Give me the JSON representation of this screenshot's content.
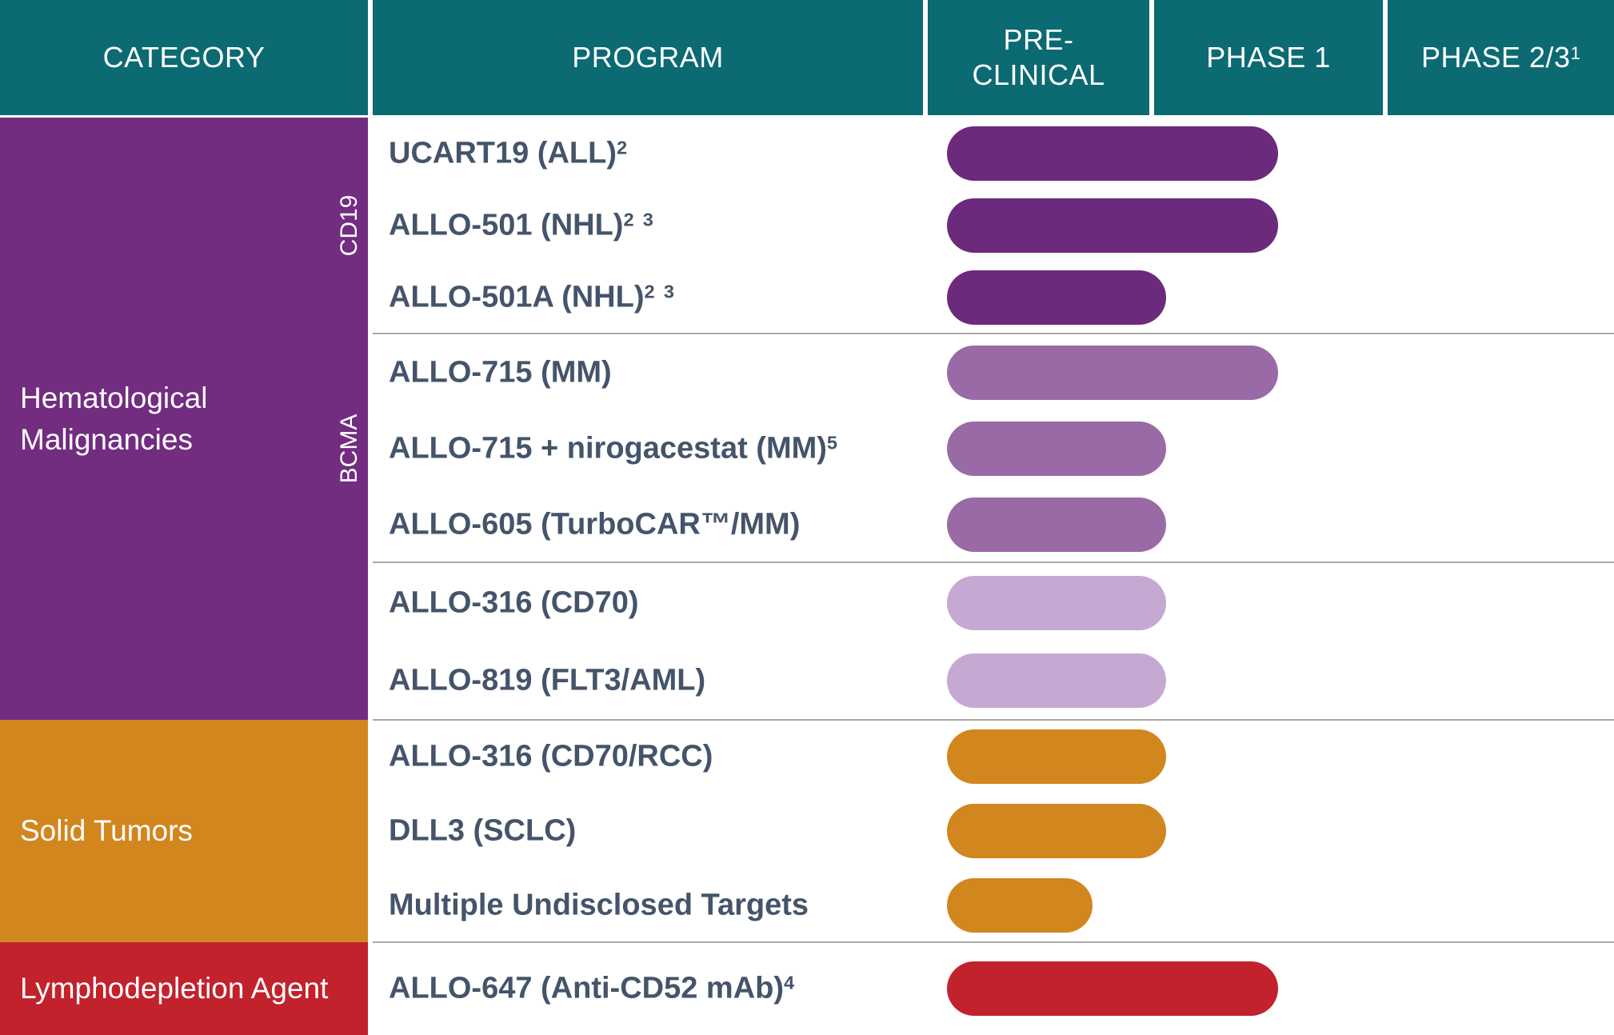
{
  "header": {
    "columns": [
      {
        "id": "category",
        "lines": [
          "CATEGORY"
        ]
      },
      {
        "id": "program",
        "lines": [
          "PROGRAM"
        ]
      },
      {
        "id": "preclinical",
        "lines": [
          "PRE-",
          "CLINICAL"
        ]
      },
      {
        "id": "phase1",
        "lines": [
          "PHASE 1"
        ]
      },
      {
        "id": "phase23",
        "lines": [
          "PHASE 2/3"
        ],
        "sup": "1"
      }
    ]
  },
  "categories": [
    {
      "id": "hematological-malignancies",
      "lines": [
        "Hematological",
        "Malignancies"
      ],
      "color": "#722C80"
    },
    {
      "id": "solid-tumors",
      "lines": [
        "Solid Tumors"
      ],
      "color": "#D2861E"
    },
    {
      "id": "lymphodepletion-agent",
      "lines": [
        "Lymphodepletion Agent"
      ],
      "color": "#C2222C"
    }
  ],
  "subcategories": [
    {
      "id": "cd19",
      "label": "CD19"
    },
    {
      "id": "bcma",
      "label": "BCMA"
    }
  ],
  "programs": [
    {
      "name": "UCART19 (ALL)",
      "sup": "2",
      "color": "#6C2A7C",
      "stage": "phase1_mid"
    },
    {
      "name": "ALLO-501 (NHL)",
      "sup": "2 3",
      "color": "#6C2A7C",
      "stage": "phase1_start"
    },
    {
      "name": "ALLO-501A (NHL)",
      "sup": "2 3",
      "color": "#6C2A7C",
      "stage": "phase1_entry"
    },
    {
      "name": "ALLO-715 (MM)",
      "sup": "",
      "color": "#9A6AA6",
      "stage": "phase1_mid"
    },
    {
      "name": "ALLO-715 + nirogacestat (MM)",
      "sup": "5",
      "color": "#9A6AA6",
      "stage": "phase1_entry"
    },
    {
      "name": "ALLO-605 (TurboCAR™/MM)",
      "sup": "",
      "color": "#9A6AA6",
      "stage": "phase1_entry"
    },
    {
      "name": "ALLO-316 (CD70)",
      "sup": "",
      "color": "#C5A9D3",
      "stage": "phase1_entry"
    },
    {
      "name": "ALLO-819 (FLT3/AML)",
      "sup": "",
      "color": "#C5A9D3",
      "stage": "phase1_entry"
    },
    {
      "name": "ALLO-316 (CD70/RCC)",
      "sup": "",
      "color": "#D2861E",
      "stage": "phase1_entry"
    },
    {
      "name": "DLL3 (SCLC)",
      "sup": "",
      "color": "#D2861E",
      "stage": "phase1_entry"
    },
    {
      "name": "Multiple Undisclosed Targets",
      "sup": "",
      "color": "#D2861E",
      "stage": "preclinical"
    },
    {
      "name": "ALLO-647 (Anti-CD52 mAb)",
      "sup": "4",
      "color": "#C2222C",
      "stage": "phase1_mid"
    }
  ],
  "colors": {
    "header_teal": "#0C6A72",
    "category_purple": "#722C80",
    "bar_dark_purple": "#6C2A7C",
    "bar_medium_purple": "#9A6AA6",
    "bar_light_purple": "#C5A9D3",
    "orange": "#D2861E",
    "red": "#C2222C",
    "label_text": "#44546A",
    "separator_gray": "#A9A9A9",
    "background": "#FFFFFF"
  },
  "chart_data": {
    "type": "bar",
    "orientation": "horizontal",
    "title": "",
    "x_phases": [
      "PRE-CLINICAL",
      "PHASE 1",
      "PHASE 2/3"
    ],
    "categories": [
      "UCART19 (ALL)2",
      "ALLO-501 (NHL)2 3",
      "ALLO-501A (NHL)2 3",
      "ALLO-715 (MM)",
      "ALLO-715 + nirogacestat (MM)5",
      "ALLO-605 (TurboCAR™/MM)",
      "ALLO-316 (CD70)",
      "ALLO-819 (FLT3/AML)",
      "ALLO-316 (CD70/RCC)",
      "DLL3 (SCLC)",
      "Multiple Undisclosed Targets",
      "ALLO-647 (Anti-CD52 mAb)4"
    ],
    "groups": [
      "Hematological Malignancies / CD19",
      "Hematological Malignancies / CD19",
      "Hematological Malignancies / CD19",
      "Hematological Malignancies / BCMA",
      "Hematological Malignancies / BCMA",
      "Hematological Malignancies / BCMA",
      "Hematological Malignancies",
      "Hematological Malignancies",
      "Solid Tumors",
      "Solid Tumors",
      "Solid Tumors",
      "Lymphodepletion Agent"
    ],
    "values": [
      1.55,
      1.55,
      1.05,
      1.55,
      1.05,
      1.05,
      1.05,
      1.05,
      1.05,
      1.05,
      0.75,
      1.55
    ],
    "value_scale": "phase units: 0-1 = Pre-clinical, 1-2 = Phase 1, 2-3 = Phase 2/3",
    "legend_position": "none",
    "grid": false
  }
}
